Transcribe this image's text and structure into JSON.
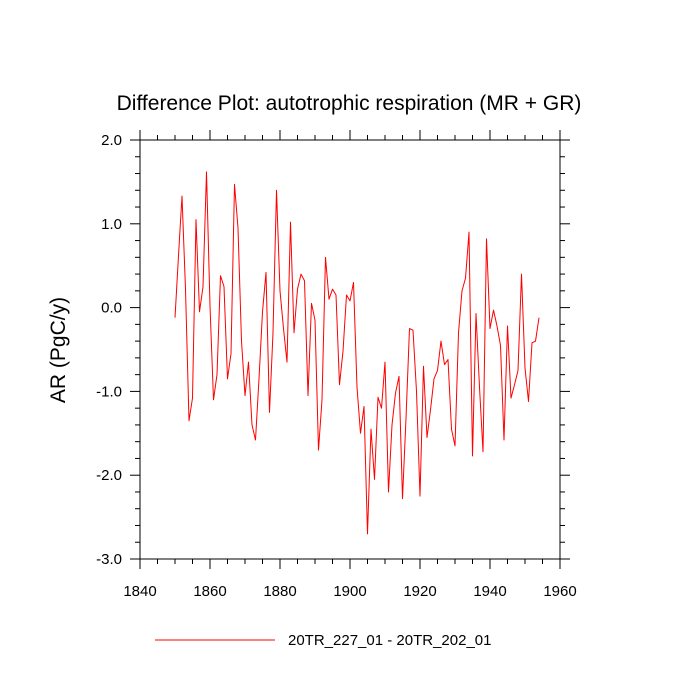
{
  "chart_data": {
    "type": "line",
    "title": "Difference Plot: autotrophic respiration (MR + GR)",
    "xlabel": "",
    "ylabel": "AR  (PgC/y)",
    "xlim": [
      1840,
      1960
    ],
    "ylim": [
      -3.0,
      2.0
    ],
    "x_ticks": [
      1840,
      1860,
      1880,
      1900,
      1920,
      1940,
      1960
    ],
    "x_tick_labels": [
      "1840",
      "1860",
      "1880",
      "1900",
      "1920",
      "1940",
      "1960"
    ],
    "y_ticks": [
      -3.0,
      -2.0,
      -1.0,
      0.0,
      1.0,
      2.0
    ],
    "y_tick_labels": [
      "-3.0",
      "-2.0",
      "-1.0",
      "0.0",
      "1.0",
      "2.0"
    ],
    "legend_placement": "bottom-center",
    "grid": false,
    "series": [
      {
        "name": "20TR_227_01 - 20TR_202_01",
        "color": "#ff0000",
        "x": [
          1850,
          1851,
          1852,
          1853,
          1854,
          1855,
          1856,
          1857,
          1858,
          1859,
          1860,
          1861,
          1862,
          1863,
          1864,
          1865,
          1866,
          1867,
          1868,
          1869,
          1870,
          1871,
          1872,
          1873,
          1874,
          1875,
          1876,
          1877,
          1878,
          1879,
          1880,
          1881,
          1882,
          1883,
          1884,
          1885,
          1886,
          1887,
          1888,
          1889,
          1890,
          1891,
          1892,
          1893,
          1894,
          1895,
          1896,
          1897,
          1898,
          1899,
          1900,
          1901,
          1902,
          1903,
          1904,
          1905,
          1906,
          1907,
          1908,
          1909,
          1910,
          1911,
          1912,
          1913,
          1914,
          1915,
          1916,
          1917,
          1918,
          1919,
          1920,
          1921,
          1922,
          1923,
          1924,
          1925,
          1926,
          1927,
          1928,
          1929,
          1930,
          1931,
          1932,
          1933,
          1934,
          1935,
          1936,
          1937,
          1938,
          1939,
          1940,
          1941,
          1942,
          1943,
          1944,
          1945,
          1946,
          1947,
          1948,
          1949,
          1950,
          1951,
          1952,
          1953,
          1954
        ],
        "values": [
          -0.12,
          0.62,
          1.33,
          0.22,
          -1.35,
          -1.08,
          1.05,
          -0.05,
          0.25,
          1.62,
          0.02,
          -1.1,
          -0.8,
          0.38,
          0.25,
          -0.85,
          -0.55,
          1.47,
          0.95,
          -0.4,
          -1.05,
          -0.65,
          -1.4,
          -1.58,
          -0.85,
          -0.05,
          0.42,
          -1.25,
          -0.3,
          1.4,
          0.2,
          -0.25,
          -0.65,
          1.02,
          -0.3,
          0.22,
          0.4,
          0.32,
          -1.05,
          0.05,
          -0.15,
          -1.7,
          -1.1,
          0.6,
          0.1,
          0.22,
          0.15,
          -0.92,
          -0.52,
          0.15,
          0.08,
          0.3,
          -0.95,
          -1.5,
          -1.18,
          -2.7,
          -1.45,
          -2.05,
          -1.07,
          -1.2,
          -0.65,
          -2.2,
          -1.4,
          -1.02,
          -0.82,
          -2.28,
          -1.32,
          -0.25,
          -0.27,
          -1.0,
          -2.25,
          -0.7,
          -1.55,
          -1.22,
          -0.85,
          -0.75,
          -0.4,
          -0.68,
          -0.62,
          -1.45,
          -1.65,
          -0.3,
          0.2,
          0.35,
          0.9,
          -1.77,
          -0.07,
          -0.95,
          -1.72,
          0.82,
          -0.25,
          -0.03,
          -0.22,
          -0.45,
          -1.58,
          -0.22,
          -1.08,
          -0.92,
          -0.75,
          0.4,
          -0.72,
          -1.12,
          -0.42,
          -0.4,
          -0.12
        ]
      }
    ]
  }
}
